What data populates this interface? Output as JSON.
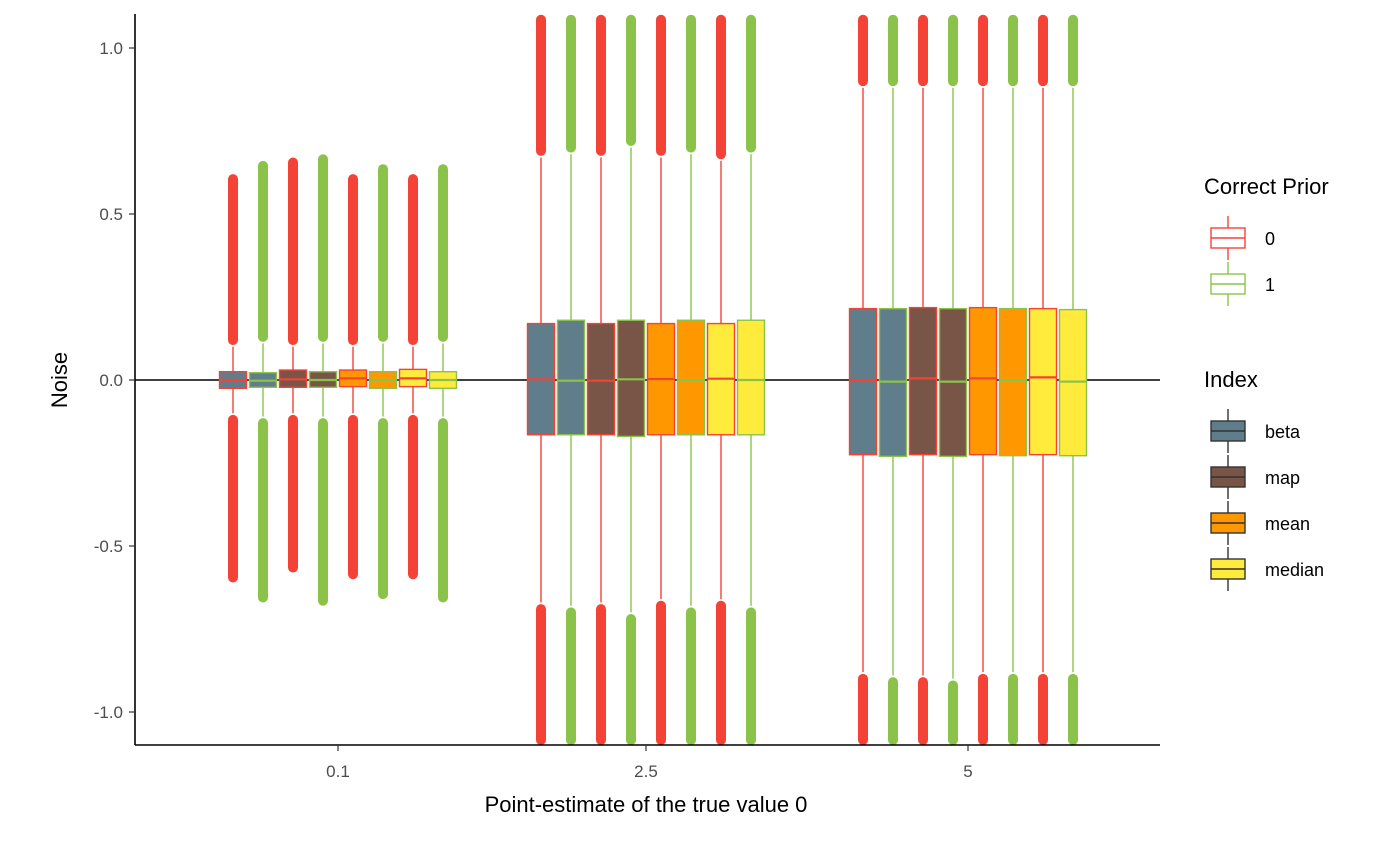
{
  "chart_data": {
    "type": "boxplot",
    "xlabel": "Point-estimate of the true value 0",
    "ylabel": "Noise",
    "ylim": [
      -1.1,
      1.1
    ],
    "yticks": [
      1.0,
      0.5,
      0.0,
      -0.5,
      -1.0
    ],
    "ytick_labels": [
      "1.0",
      "0.5",
      "0.0",
      "-0.5",
      "-1.0"
    ],
    "categories": [
      "0.1",
      "2.5",
      "5"
    ],
    "reference_line_y": 0,
    "legends": {
      "correct_prior": {
        "title": "Correct Prior",
        "items": [
          {
            "label": "0",
            "color": "#F44336"
          },
          {
            "label": "1",
            "color": "#8BC34A"
          }
        ]
      },
      "index": {
        "title": "Index",
        "items": [
          {
            "label": "beta",
            "color": "#607D8B"
          },
          {
            "label": "map",
            "color": "#795548"
          },
          {
            "label": "mean",
            "color": "#FF9800"
          },
          {
            "label": "median",
            "color": "#FFEB3B"
          }
        ]
      }
    },
    "groups": [
      {
        "category": "0.1",
        "boxes": [
          {
            "index": "beta",
            "prior": "0",
            "q1": -0.025,
            "median": 0.0,
            "q3": 0.025,
            "whisker_low": -0.1,
            "whisker_high": 0.1,
            "outlier_low": -0.61,
            "outlier_high": 0.62
          },
          {
            "index": "beta",
            "prior": "1",
            "q1": -0.022,
            "median": -0.002,
            "q3": 0.022,
            "whisker_low": -0.11,
            "whisker_high": 0.11,
            "outlier_low": -0.67,
            "outlier_high": 0.66
          },
          {
            "index": "map",
            "prior": "0",
            "q1": -0.022,
            "median": 0.002,
            "q3": 0.03,
            "whisker_low": -0.1,
            "whisker_high": 0.1,
            "outlier_low": -0.58,
            "outlier_high": 0.67
          },
          {
            "index": "map",
            "prior": "1",
            "q1": -0.022,
            "median": 0.0,
            "q3": 0.025,
            "whisker_low": -0.11,
            "whisker_high": 0.11,
            "outlier_low": -0.68,
            "outlier_high": 0.68
          },
          {
            "index": "mean",
            "prior": "0",
            "q1": -0.02,
            "median": 0.005,
            "q3": 0.03,
            "whisker_low": -0.1,
            "whisker_high": 0.1,
            "outlier_low": -0.6,
            "outlier_high": 0.62
          },
          {
            "index": "mean",
            "prior": "1",
            "q1": -0.025,
            "median": 0.0,
            "q3": 0.025,
            "whisker_low": -0.11,
            "whisker_high": 0.11,
            "outlier_low": -0.66,
            "outlier_high": 0.65
          },
          {
            "index": "median",
            "prior": "0",
            "q1": -0.02,
            "median": 0.005,
            "q3": 0.032,
            "whisker_low": -0.1,
            "whisker_high": 0.1,
            "outlier_low": -0.6,
            "outlier_high": 0.62
          },
          {
            "index": "median",
            "prior": "1",
            "q1": -0.025,
            "median": 0.0,
            "q3": 0.025,
            "whisker_low": -0.11,
            "whisker_high": 0.11,
            "outlier_low": -0.67,
            "outlier_high": 0.65
          }
        ]
      },
      {
        "category": "2.5",
        "boxes": [
          {
            "index": "beta",
            "prior": "0",
            "q1": -0.165,
            "median": 0.002,
            "q3": 0.17,
            "whisker_low": -0.67,
            "whisker_high": 0.67,
            "outlier_low": -1.1,
            "outlier_high": 1.1
          },
          {
            "index": "beta",
            "prior": "1",
            "q1": -0.165,
            "median": -0.002,
            "q3": 0.18,
            "whisker_low": -0.68,
            "whisker_high": 0.68,
            "outlier_low": -1.1,
            "outlier_high": 1.1
          },
          {
            "index": "map",
            "prior": "0",
            "q1": -0.165,
            "median": -0.002,
            "q3": 0.17,
            "whisker_low": -0.67,
            "whisker_high": 0.67,
            "outlier_low": -1.1,
            "outlier_high": 1.1
          },
          {
            "index": "map",
            "prior": "1",
            "q1": -0.17,
            "median": 0.002,
            "q3": 0.18,
            "whisker_low": -0.7,
            "whisker_high": 0.7,
            "outlier_low": -1.1,
            "outlier_high": 1.1
          },
          {
            "index": "mean",
            "prior": "0",
            "q1": -0.165,
            "median": 0.003,
            "q3": 0.17,
            "whisker_low": -0.66,
            "whisker_high": 0.67,
            "outlier_low": -1.1,
            "outlier_high": 1.1
          },
          {
            "index": "mean",
            "prior": "1",
            "q1": -0.165,
            "median": 0.0,
            "q3": 0.18,
            "whisker_low": -0.68,
            "whisker_high": 0.68,
            "outlier_low": -1.1,
            "outlier_high": 1.1
          },
          {
            "index": "median",
            "prior": "0",
            "q1": -0.165,
            "median": 0.004,
            "q3": 0.17,
            "whisker_low": -0.66,
            "whisker_high": 0.66,
            "outlier_low": -1.1,
            "outlier_high": 1.1
          },
          {
            "index": "median",
            "prior": "1",
            "q1": -0.165,
            "median": 0.0,
            "q3": 0.18,
            "whisker_low": -0.68,
            "whisker_high": 0.68,
            "outlier_low": -1.1,
            "outlier_high": 1.1
          }
        ]
      },
      {
        "category": "5",
        "boxes": [
          {
            "index": "beta",
            "prior": "0",
            "q1": -0.225,
            "median": 0.0,
            "q3": 0.215,
            "whisker_low": -0.88,
            "whisker_high": 0.88,
            "outlier_low": -1.1,
            "outlier_high": 1.1
          },
          {
            "index": "beta",
            "prior": "1",
            "q1": -0.23,
            "median": -0.005,
            "q3": 0.215,
            "whisker_low": -0.89,
            "whisker_high": 0.88,
            "outlier_low": -1.1,
            "outlier_high": 1.1
          },
          {
            "index": "map",
            "prior": "0",
            "q1": -0.225,
            "median": 0.005,
            "q3": 0.218,
            "whisker_low": -0.89,
            "whisker_high": 0.88,
            "outlier_low": -1.1,
            "outlier_high": 1.1
          },
          {
            "index": "map",
            "prior": "1",
            "q1": -0.23,
            "median": -0.005,
            "q3": 0.215,
            "whisker_low": -0.9,
            "whisker_high": 0.88,
            "outlier_low": -1.1,
            "outlier_high": 1.1
          },
          {
            "index": "mean",
            "prior": "0",
            "q1": -0.225,
            "median": 0.005,
            "q3": 0.218,
            "whisker_low": -0.88,
            "whisker_high": 0.88,
            "outlier_low": -1.1,
            "outlier_high": 1.1
          },
          {
            "index": "mean",
            "prior": "1",
            "q1": -0.228,
            "median": 0.0,
            "q3": 0.215,
            "whisker_low": -0.88,
            "whisker_high": 0.88,
            "outlier_low": -1.1,
            "outlier_high": 1.1
          },
          {
            "index": "median",
            "prior": "0",
            "q1": -0.225,
            "median": 0.008,
            "q3": 0.215,
            "whisker_low": -0.88,
            "whisker_high": 0.88,
            "outlier_low": -1.1,
            "outlier_high": 1.1
          },
          {
            "index": "median",
            "prior": "1",
            "q1": -0.228,
            "median": -0.005,
            "q3": 0.212,
            "whisker_low": -0.88,
            "whisker_high": 0.88,
            "outlier_low": -1.1,
            "outlier_high": 1.1
          }
        ]
      }
    ]
  }
}
